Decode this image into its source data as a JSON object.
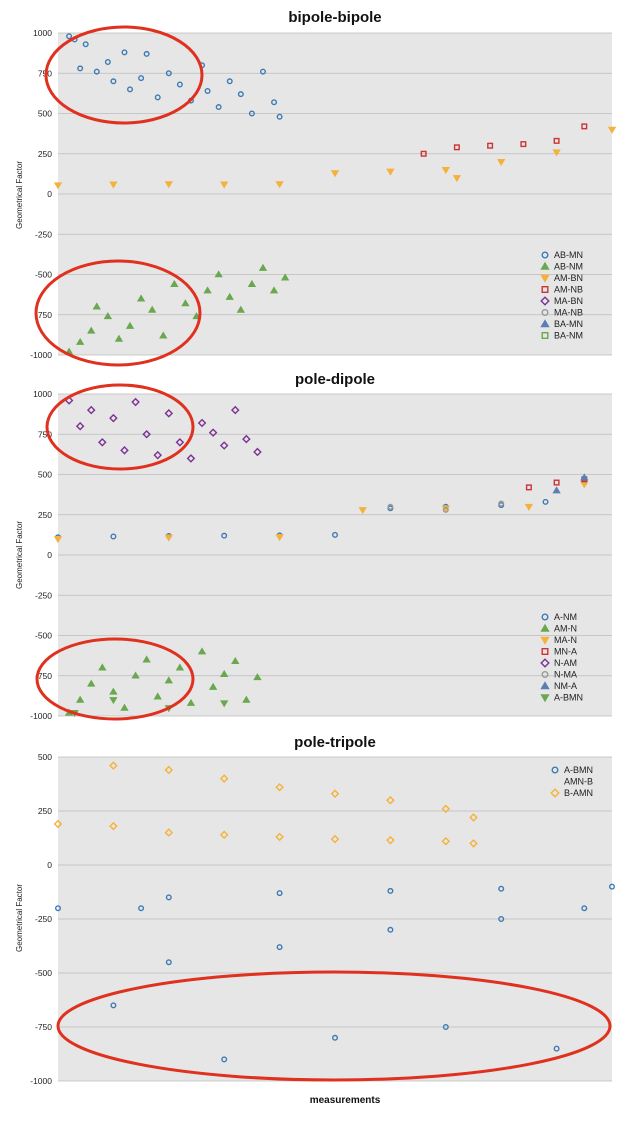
{
  "chart_data": [
    {
      "type": "scatter",
      "title": "bipole-bipole",
      "ylabel": "Geometrical Factor",
      "xlabel": "",
      "ylim": [
        -1000,
        1000
      ],
      "yticks": [
        1000,
        750,
        500,
        250,
        0,
        -250,
        -500,
        -750,
        -1000
      ],
      "grid": true,
      "legend_position": "bottom-right",
      "series": [
        {
          "name": "AB-MN",
          "marker": "circle",
          "color": "#3d7ab5",
          "points": [
            [
              0.02,
              980
            ],
            [
              0.03,
              960
            ],
            [
              0.05,
              930
            ],
            [
              0.04,
              780
            ],
            [
              0.07,
              760
            ],
            [
              0.09,
              820
            ],
            [
              0.1,
              700
            ],
            [
              0.12,
              880
            ],
            [
              0.13,
              650
            ],
            [
              0.15,
              720
            ],
            [
              0.16,
              870
            ],
            [
              0.18,
              600
            ],
            [
              0.2,
              750
            ],
            [
              0.22,
              680
            ],
            [
              0.24,
              580
            ],
            [
              0.26,
              800
            ],
            [
              0.27,
              640
            ],
            [
              0.29,
              540
            ],
            [
              0.31,
              700
            ],
            [
              0.33,
              620
            ],
            [
              0.35,
              500
            ],
            [
              0.37,
              760
            ],
            [
              0.39,
              570
            ],
            [
              0.4,
              480
            ]
          ]
        },
        {
          "name": "AB-NM",
          "marker": "triangle",
          "color": "#6aa84f",
          "points": [
            [
              0.02,
              -980
            ],
            [
              0.04,
              -920
            ],
            [
              0.06,
              -850
            ],
            [
              0.07,
              -700
            ],
            [
              0.09,
              -760
            ],
            [
              0.11,
              -900
            ],
            [
              0.13,
              -820
            ],
            [
              0.15,
              -650
            ],
            [
              0.17,
              -720
            ],
            [
              0.19,
              -880
            ],
            [
              0.21,
              -560
            ],
            [
              0.23,
              -680
            ],
            [
              0.25,
              -760
            ],
            [
              0.27,
              -600
            ],
            [
              0.29,
              -500
            ],
            [
              0.31,
              -640
            ],
            [
              0.33,
              -720
            ],
            [
              0.35,
              -560
            ],
            [
              0.37,
              -460
            ],
            [
              0.39,
              -600
            ],
            [
              0.41,
              -520
            ]
          ]
        },
        {
          "name": "AM-BN",
          "marker": "triangle-down",
          "color": "#f4b23a",
          "points": [
            [
              0.0,
              55
            ],
            [
              0.1,
              60
            ],
            [
              0.2,
              62
            ],
            [
              0.3,
              60
            ],
            [
              0.4,
              62
            ],
            [
              0.5,
              130
            ],
            [
              0.6,
              140
            ],
            [
              0.7,
              150
            ],
            [
              0.72,
              100
            ],
            [
              0.8,
              200
            ],
            [
              0.9,
              260
            ],
            [
              1.0,
              400
            ]
          ]
        },
        {
          "name": "AM-NB",
          "marker": "square",
          "color": "#cc3333",
          "points": [
            [
              0.66,
              250
            ],
            [
              0.72,
              290
            ],
            [
              0.78,
              300
            ],
            [
              0.84,
              310
            ],
            [
              0.9,
              330
            ],
            [
              0.95,
              420
            ]
          ]
        },
        {
          "name": "MA-BN",
          "marker": "diamond",
          "color": "#7b3294",
          "points": []
        },
        {
          "name": "MA-NB",
          "marker": "circle",
          "color": "#999999",
          "points": []
        },
        {
          "name": "BA-MN",
          "marker": "triangle",
          "color": "#5b7fb5",
          "points": []
        },
        {
          "name": "BA-NM",
          "marker": "square",
          "color": "#6aa84f",
          "points": []
        }
      ]
    },
    {
      "type": "scatter",
      "title": "pole-dipole",
      "ylabel": "Geometrical Factor",
      "xlabel": "",
      "ylim": [
        -1000,
        1000
      ],
      "yticks": [
        1000,
        750,
        500,
        250,
        0,
        -250,
        -500,
        -750,
        -1000
      ],
      "grid": true,
      "legend_position": "bottom-right",
      "series": [
        {
          "name": "A-NM",
          "marker": "circle",
          "color": "#3d7ab5",
          "points": [
            [
              0.0,
              110
            ],
            [
              0.1,
              115
            ],
            [
              0.2,
              118
            ],
            [
              0.3,
              120
            ],
            [
              0.4,
              122
            ],
            [
              0.5,
              125
            ],
            [
              0.6,
              290
            ],
            [
              0.7,
              300
            ],
            [
              0.8,
              310
            ],
            [
              0.88,
              330
            ],
            [
              0.95,
              450
            ]
          ]
        },
        {
          "name": "AM-N",
          "marker": "triangle",
          "color": "#6aa84f",
          "points": [
            [
              0.02,
              -980
            ],
            [
              0.04,
              -900
            ],
            [
              0.06,
              -800
            ],
            [
              0.08,
              -700
            ],
            [
              0.1,
              -850
            ],
            [
              0.12,
              -950
            ],
            [
              0.14,
              -750
            ],
            [
              0.16,
              -650
            ],
            [
              0.18,
              -880
            ],
            [
              0.2,
              -780
            ],
            [
              0.22,
              -700
            ],
            [
              0.24,
              -920
            ],
            [
              0.26,
              -600
            ],
            [
              0.28,
              -820
            ],
            [
              0.3,
              -740
            ],
            [
              0.32,
              -660
            ],
            [
              0.34,
              -900
            ],
            [
              0.36,
              -760
            ]
          ]
        },
        {
          "name": "MA-N",
          "marker": "triangle-down",
          "color": "#f4b23a",
          "points": [
            [
              0.0,
              100
            ],
            [
              0.2,
              110
            ],
            [
              0.4,
              112
            ],
            [
              0.55,
              280
            ],
            [
              0.7,
              290
            ],
            [
              0.85,
              300
            ],
            [
              0.95,
              440
            ]
          ]
        },
        {
          "name": "MN-A",
          "marker": "square",
          "color": "#cc3333",
          "points": [
            [
              0.85,
              420
            ],
            [
              0.9,
              450
            ],
            [
              0.95,
              470
            ]
          ]
        },
        {
          "name": "N-AM",
          "marker": "diamond",
          "color": "#7b3294",
          "points": [
            [
              0.02,
              960
            ],
            [
              0.04,
              800
            ],
            [
              0.06,
              900
            ],
            [
              0.08,
              700
            ],
            [
              0.1,
              850
            ],
            [
              0.12,
              650
            ],
            [
              0.14,
              950
            ],
            [
              0.16,
              750
            ],
            [
              0.18,
              620
            ],
            [
              0.2,
              880
            ],
            [
              0.22,
              700
            ],
            [
              0.24,
              600
            ],
            [
              0.26,
              820
            ],
            [
              0.28,
              760
            ],
            [
              0.3,
              680
            ],
            [
              0.32,
              900
            ],
            [
              0.34,
              720
            ],
            [
              0.36,
              640
            ]
          ]
        },
        {
          "name": "N-MA",
          "marker": "circle",
          "color": "#999999",
          "points": [
            [
              0.6,
              300
            ],
            [
              0.7,
              280
            ],
            [
              0.8,
              320
            ]
          ]
        },
        {
          "name": "NM-A",
          "marker": "triangle",
          "color": "#5b7fb5",
          "points": [
            [
              0.9,
              400
            ],
            [
              0.95,
              480
            ]
          ]
        },
        {
          "name": "A-BMN",
          "marker": "triangle-down",
          "color": "#6aa84f",
          "points": [
            [
              0.03,
              -980
            ],
            [
              0.1,
              -900
            ],
            [
              0.2,
              -950
            ],
            [
              0.3,
              -920
            ]
          ]
        }
      ]
    },
    {
      "type": "scatter",
      "title": "pole-tripole",
      "ylabel": "Geometrical Factor",
      "xlabel": "measurements",
      "ylim": [
        -1000,
        500
      ],
      "yticks": [
        500,
        250,
        0,
        -250,
        -500,
        -750,
        -1000
      ],
      "grid": true,
      "legend_position": "top-right",
      "series": [
        {
          "name": "A-BMN",
          "marker": "circle",
          "color": "#3d7ab5",
          "points": [
            [
              0.0,
              -200
            ],
            [
              0.15,
              -200
            ],
            [
              0.2,
              -150
            ],
            [
              0.4,
              -130
            ],
            [
              0.6,
              -120
            ],
            [
              0.8,
              -110
            ],
            [
              1.0,
              -100
            ],
            [
              0.1,
              -650
            ],
            [
              0.2,
              -450
            ],
            [
              0.4,
              -380
            ],
            [
              0.6,
              -300
            ],
            [
              0.8,
              -250
            ],
            [
              0.95,
              -200
            ],
            [
              0.3,
              -900
            ],
            [
              0.5,
              -800
            ],
            [
              0.7,
              -750
            ],
            [
              0.9,
              -850
            ]
          ]
        },
        {
          "name": "AMN-B",
          "marker": "square",
          "color": "#e8e8e8",
          "points": []
        },
        {
          "name": "B-AMN",
          "marker": "diamond",
          "color": "#f4b23a",
          "points": [
            [
              0.0,
              190
            ],
            [
              0.1,
              180
            ],
            [
              0.2,
              150
            ],
            [
              0.3,
              140
            ],
            [
              0.4,
              130
            ],
            [
              0.5,
              120
            ],
            [
              0.6,
              115
            ],
            [
              0.7,
              110
            ],
            [
              0.75,
              100
            ],
            [
              0.1,
              460
            ],
            [
              0.2,
              440
            ],
            [
              0.3,
              400
            ],
            [
              0.4,
              360
            ],
            [
              0.5,
              330
            ],
            [
              0.6,
              300
            ],
            [
              0.7,
              260
            ],
            [
              0.75,
              220
            ]
          ]
        }
      ]
    }
  ]
}
